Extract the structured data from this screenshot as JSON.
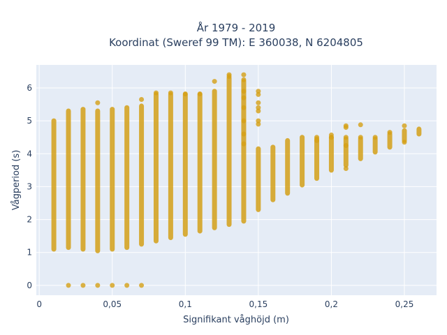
{
  "chart_data": {
    "type": "scatter",
    "title_line1": "År 1979 - 2019",
    "title_line2": "Koordinat (Sweref 99 TM): E 360038, N 6204805",
    "xlabel": "Signifikant våghöjd (m)",
    "ylabel": "Vågperiod (s)",
    "xlim": [
      -0.002,
      0.272
    ],
    "ylim": [
      -0.3,
      6.7
    ],
    "x_ticks": [
      0,
      0.05,
      0.1,
      0.15,
      0.2,
      0.25
    ],
    "x_tick_labels": [
      "0",
      "0,05",
      "0,1",
      "0,15",
      "0,2",
      "0,25"
    ],
    "y_ticks": [
      0,
      1,
      2,
      3,
      4,
      5,
      6
    ],
    "y_tick_labels": [
      "0",
      "1",
      "2",
      "3",
      "4",
      "5",
      "6"
    ],
    "grid": true,
    "colors": {
      "marker": "#D4A017",
      "plot_bg": "#E5ECF6",
      "grid": "#ffffff",
      "text": "#2a3f5f"
    },
    "series": [
      {
        "columns": [
          {
            "x": 0.01,
            "ymin": 1.1,
            "ymax": 5.0
          },
          {
            "x": 0.02,
            "ymin": 1.15,
            "ymax": 5.3
          },
          {
            "x": 0.03,
            "ymin": 1.1,
            "ymax": 5.35
          },
          {
            "x": 0.04,
            "ymin": 1.05,
            "ymax": 5.3
          },
          {
            "x": 0.05,
            "ymin": 1.1,
            "ymax": 5.35
          },
          {
            "x": 0.06,
            "ymin": 1.15,
            "ymax": 5.4
          },
          {
            "x": 0.07,
            "ymin": 1.25,
            "ymax": 5.45
          },
          {
            "x": 0.08,
            "ymin": 1.35,
            "ymax": 5.8
          },
          {
            "x": 0.09,
            "ymin": 1.45,
            "ymax": 5.8
          },
          {
            "x": 0.1,
            "ymin": 1.55,
            "ymax": 5.8
          },
          {
            "x": 0.11,
            "ymin": 1.65,
            "ymax": 5.8
          },
          {
            "x": 0.12,
            "ymin": 1.75,
            "ymax": 5.9
          },
          {
            "x": 0.13,
            "ymin": 1.85,
            "ymax": 6.3
          },
          {
            "x": 0.14,
            "ymin": 1.95,
            "ymax": 6.2
          },
          {
            "x": 0.15,
            "ymin": 2.3,
            "ymax": 4.15
          },
          {
            "x": 0.16,
            "ymin": 2.6,
            "ymax": 4.2
          },
          {
            "x": 0.17,
            "ymin": 2.8,
            "ymax": 4.4
          },
          {
            "x": 0.18,
            "ymin": 3.05,
            "ymax": 4.5
          },
          {
            "x": 0.19,
            "ymin": 3.25,
            "ymax": 4.45
          },
          {
            "x": 0.2,
            "ymin": 3.5,
            "ymax": 4.5
          },
          {
            "x": 0.21,
            "ymin": 3.65,
            "ymax": 4.45
          },
          {
            "x": 0.22,
            "ymin": 3.85,
            "ymax": 4.45
          },
          {
            "x": 0.23,
            "ymin": 4.05,
            "ymax": 4.45
          },
          {
            "x": 0.24,
            "ymin": 4.2,
            "ymax": 4.6
          },
          {
            "x": 0.25,
            "ymin": 4.4,
            "ymax": 4.7
          },
          {
            "x": 0.26,
            "ymin": 4.6,
            "ymax": 4.75
          }
        ],
        "points": [
          {
            "x": 0.02,
            "y": 0
          },
          {
            "x": 0.03,
            "y": 0
          },
          {
            "x": 0.04,
            "y": 0
          },
          {
            "x": 0.05,
            "y": 0
          },
          {
            "x": 0.06,
            "y": 0
          },
          {
            "x": 0.07,
            "y": 0
          },
          {
            "x": 0.04,
            "y": 5.55
          },
          {
            "x": 0.07,
            "y": 5.65
          },
          {
            "x": 0.08,
            "y": 5.85
          },
          {
            "x": 0.09,
            "y": 5.85
          },
          {
            "x": 0.1,
            "y": 5.82
          },
          {
            "x": 0.11,
            "y": 5.82
          },
          {
            "x": 0.12,
            "y": 6.2
          },
          {
            "x": 0.13,
            "y": 6.4
          },
          {
            "x": 0.13,
            "y": 6.35
          },
          {
            "x": 0.14,
            "y": 6.4
          },
          {
            "x": 0.14,
            "y": 6.25
          },
          {
            "x": 0.14,
            "y": 5.9
          },
          {
            "x": 0.14,
            "y": 5.7
          },
          {
            "x": 0.14,
            "y": 5.4
          },
          {
            "x": 0.14,
            "y": 5.0
          },
          {
            "x": 0.14,
            "y": 4.6
          },
          {
            "x": 0.14,
            "y": 4.3
          },
          {
            "x": 0.15,
            "y": 5.9
          },
          {
            "x": 0.15,
            "y": 5.8
          },
          {
            "x": 0.15,
            "y": 5.55
          },
          {
            "x": 0.15,
            "y": 5.4
          },
          {
            "x": 0.15,
            "y": 5.3
          },
          {
            "x": 0.15,
            "y": 5.0
          },
          {
            "x": 0.15,
            "y": 4.9
          },
          {
            "x": 0.19,
            "y": 4.5
          },
          {
            "x": 0.19,
            "y": 4.4
          },
          {
            "x": 0.2,
            "y": 4.57
          },
          {
            "x": 0.2,
            "y": 4.5
          },
          {
            "x": 0.21,
            "y": 4.85
          },
          {
            "x": 0.21,
            "y": 4.8
          },
          {
            "x": 0.21,
            "y": 4.5
          },
          {
            "x": 0.21,
            "y": 4.25
          },
          {
            "x": 0.21,
            "y": 3.55
          },
          {
            "x": 0.22,
            "y": 4.88
          },
          {
            "x": 0.22,
            "y": 4.5
          },
          {
            "x": 0.23,
            "y": 4.5
          },
          {
            "x": 0.24,
            "y": 4.65
          },
          {
            "x": 0.25,
            "y": 4.85
          },
          {
            "x": 0.25,
            "y": 4.35
          }
        ]
      }
    ]
  }
}
